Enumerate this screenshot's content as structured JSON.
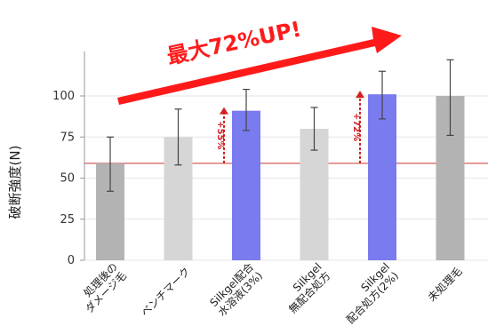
{
  "chart_data": {
    "type": "bar",
    "ylabel": "破断強度(N)",
    "ylim": [
      0,
      125
    ],
    "yticks": [
      0,
      25,
      50,
      75,
      100
    ],
    "categories": [
      [
        "処理後の",
        "ダメージ毛"
      ],
      [
        "ベンチマーク"
      ],
      [
        "Silkgel配合",
        "水溶液(3%)"
      ],
      [
        "Silkgel",
        "無配合処方"
      ],
      [
        "Silkgel",
        "配合処方(2%)"
      ],
      [
        "未処理毛"
      ]
    ],
    "values": [
      59,
      75,
      91,
      80,
      101,
      100
    ],
    "error_low": [
      42,
      58,
      79,
      67,
      86,
      76
    ],
    "error_high": [
      75,
      92,
      104,
      93,
      115,
      122
    ],
    "colors": [
      "#b3b3b3",
      "#d6d6d6",
      "#7b7bf0",
      "#d6d6d6",
      "#7b7bf0",
      "#b3b3b3"
    ],
    "reference_line": 59,
    "reference_color": "#cc3333",
    "headline": "最大72%UP!",
    "annotations": [
      {
        "bar": 2,
        "text": "+55%"
      },
      {
        "bar": 4,
        "text": "+72%"
      }
    ],
    "grid": true
  }
}
